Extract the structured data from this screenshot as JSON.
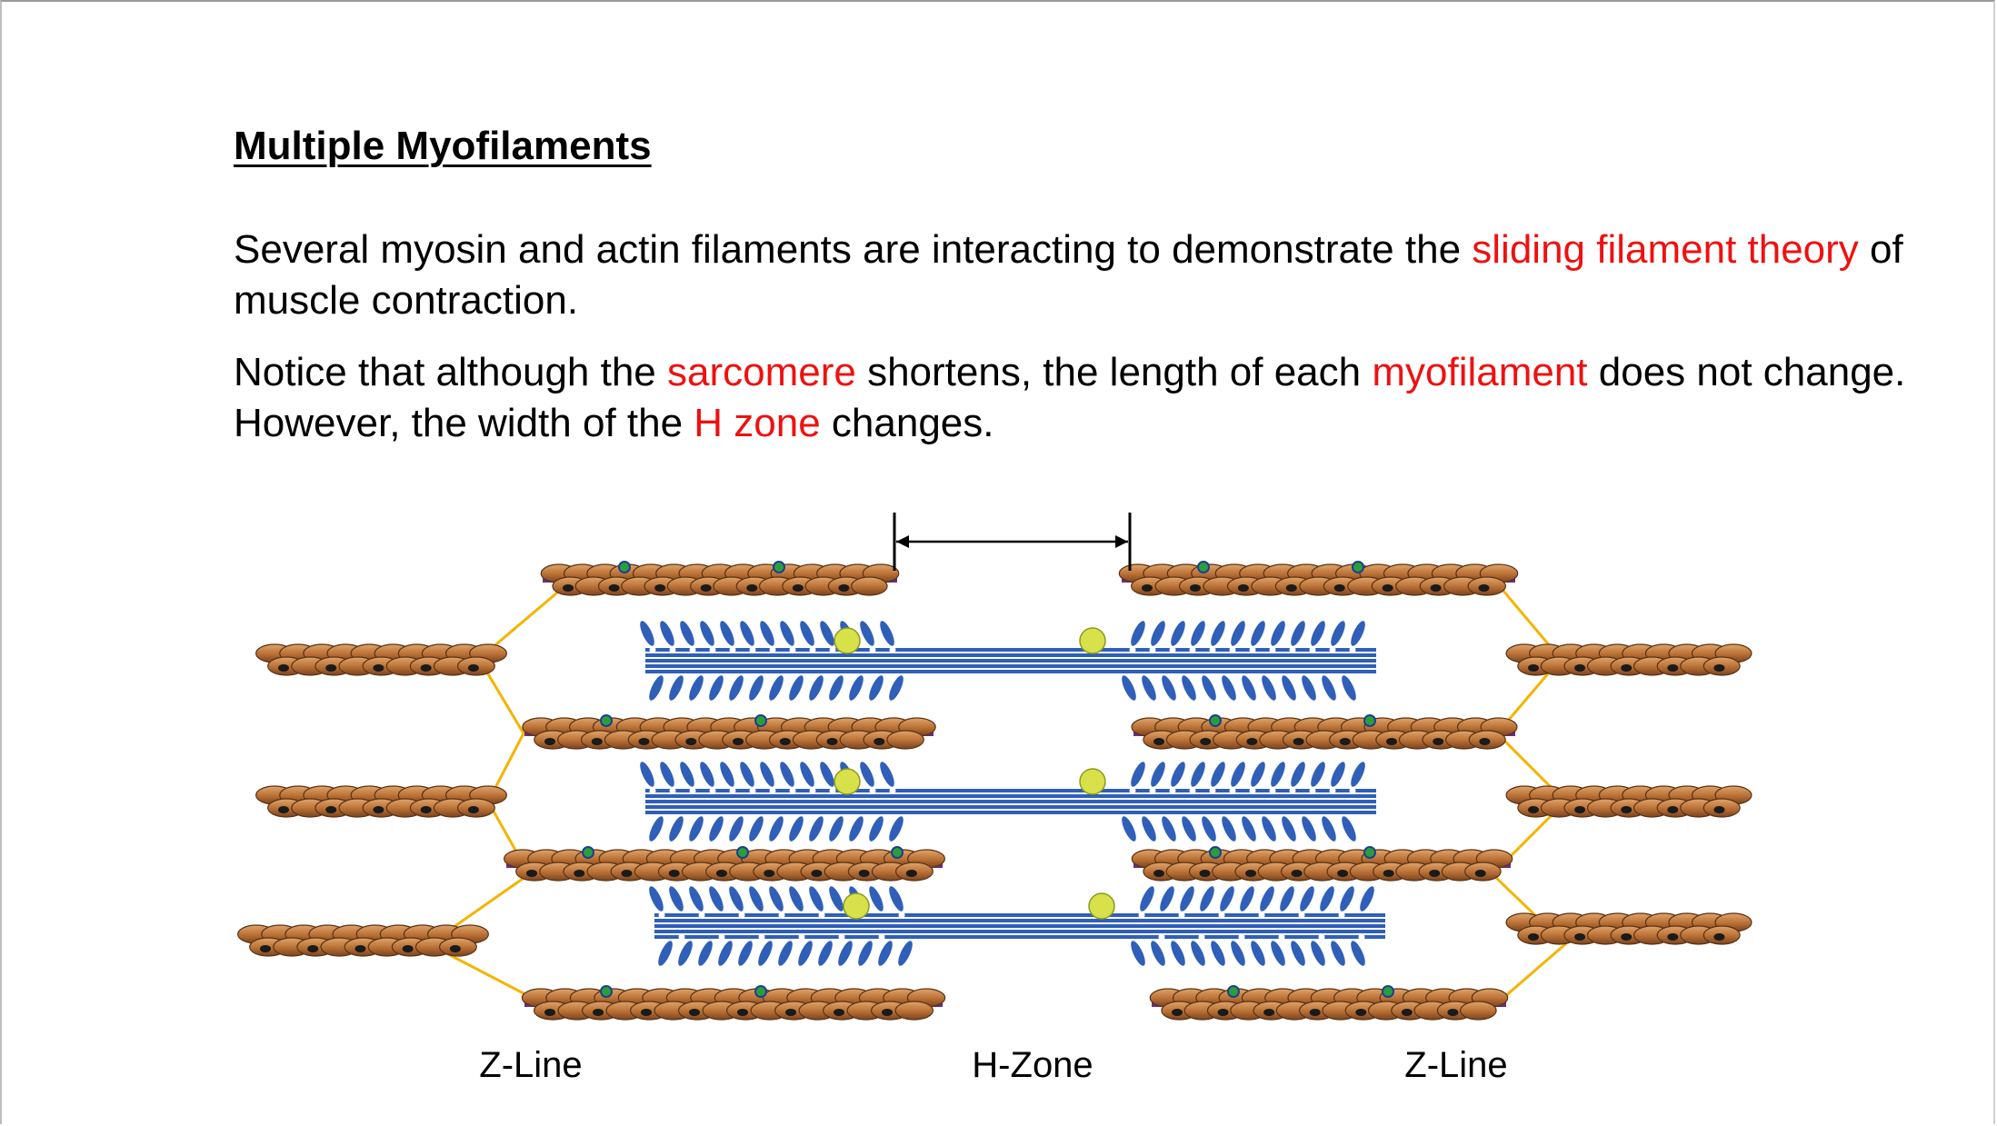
{
  "title": "Multiple Myofilaments",
  "paragraph1": {
    "t1": "Several myosin and actin filaments are interacting to demonstrate the ",
    "h1": "sliding filament theory",
    "t2": "  of muscle contraction."
  },
  "paragraph2": {
    "t1": "Notice that although the ",
    "h1": "sarcomere",
    "t2": " shortens, the length  of each  ",
    "h2": "myofilament",
    "t3": " does not change.  However, the width  of the ",
    "h3": "H zone",
    "t4": " changes."
  },
  "labels": {
    "z_line_left": "Z-Line",
    "h_zone": "H-Zone",
    "z_line_right": "Z-Line"
  },
  "colors": {
    "highlight": "#ee1111",
    "myosin": "#2f5fb8",
    "actin_bead": "#c27a3c",
    "z_line": "#f4b400",
    "atp": "#d8e04a"
  }
}
